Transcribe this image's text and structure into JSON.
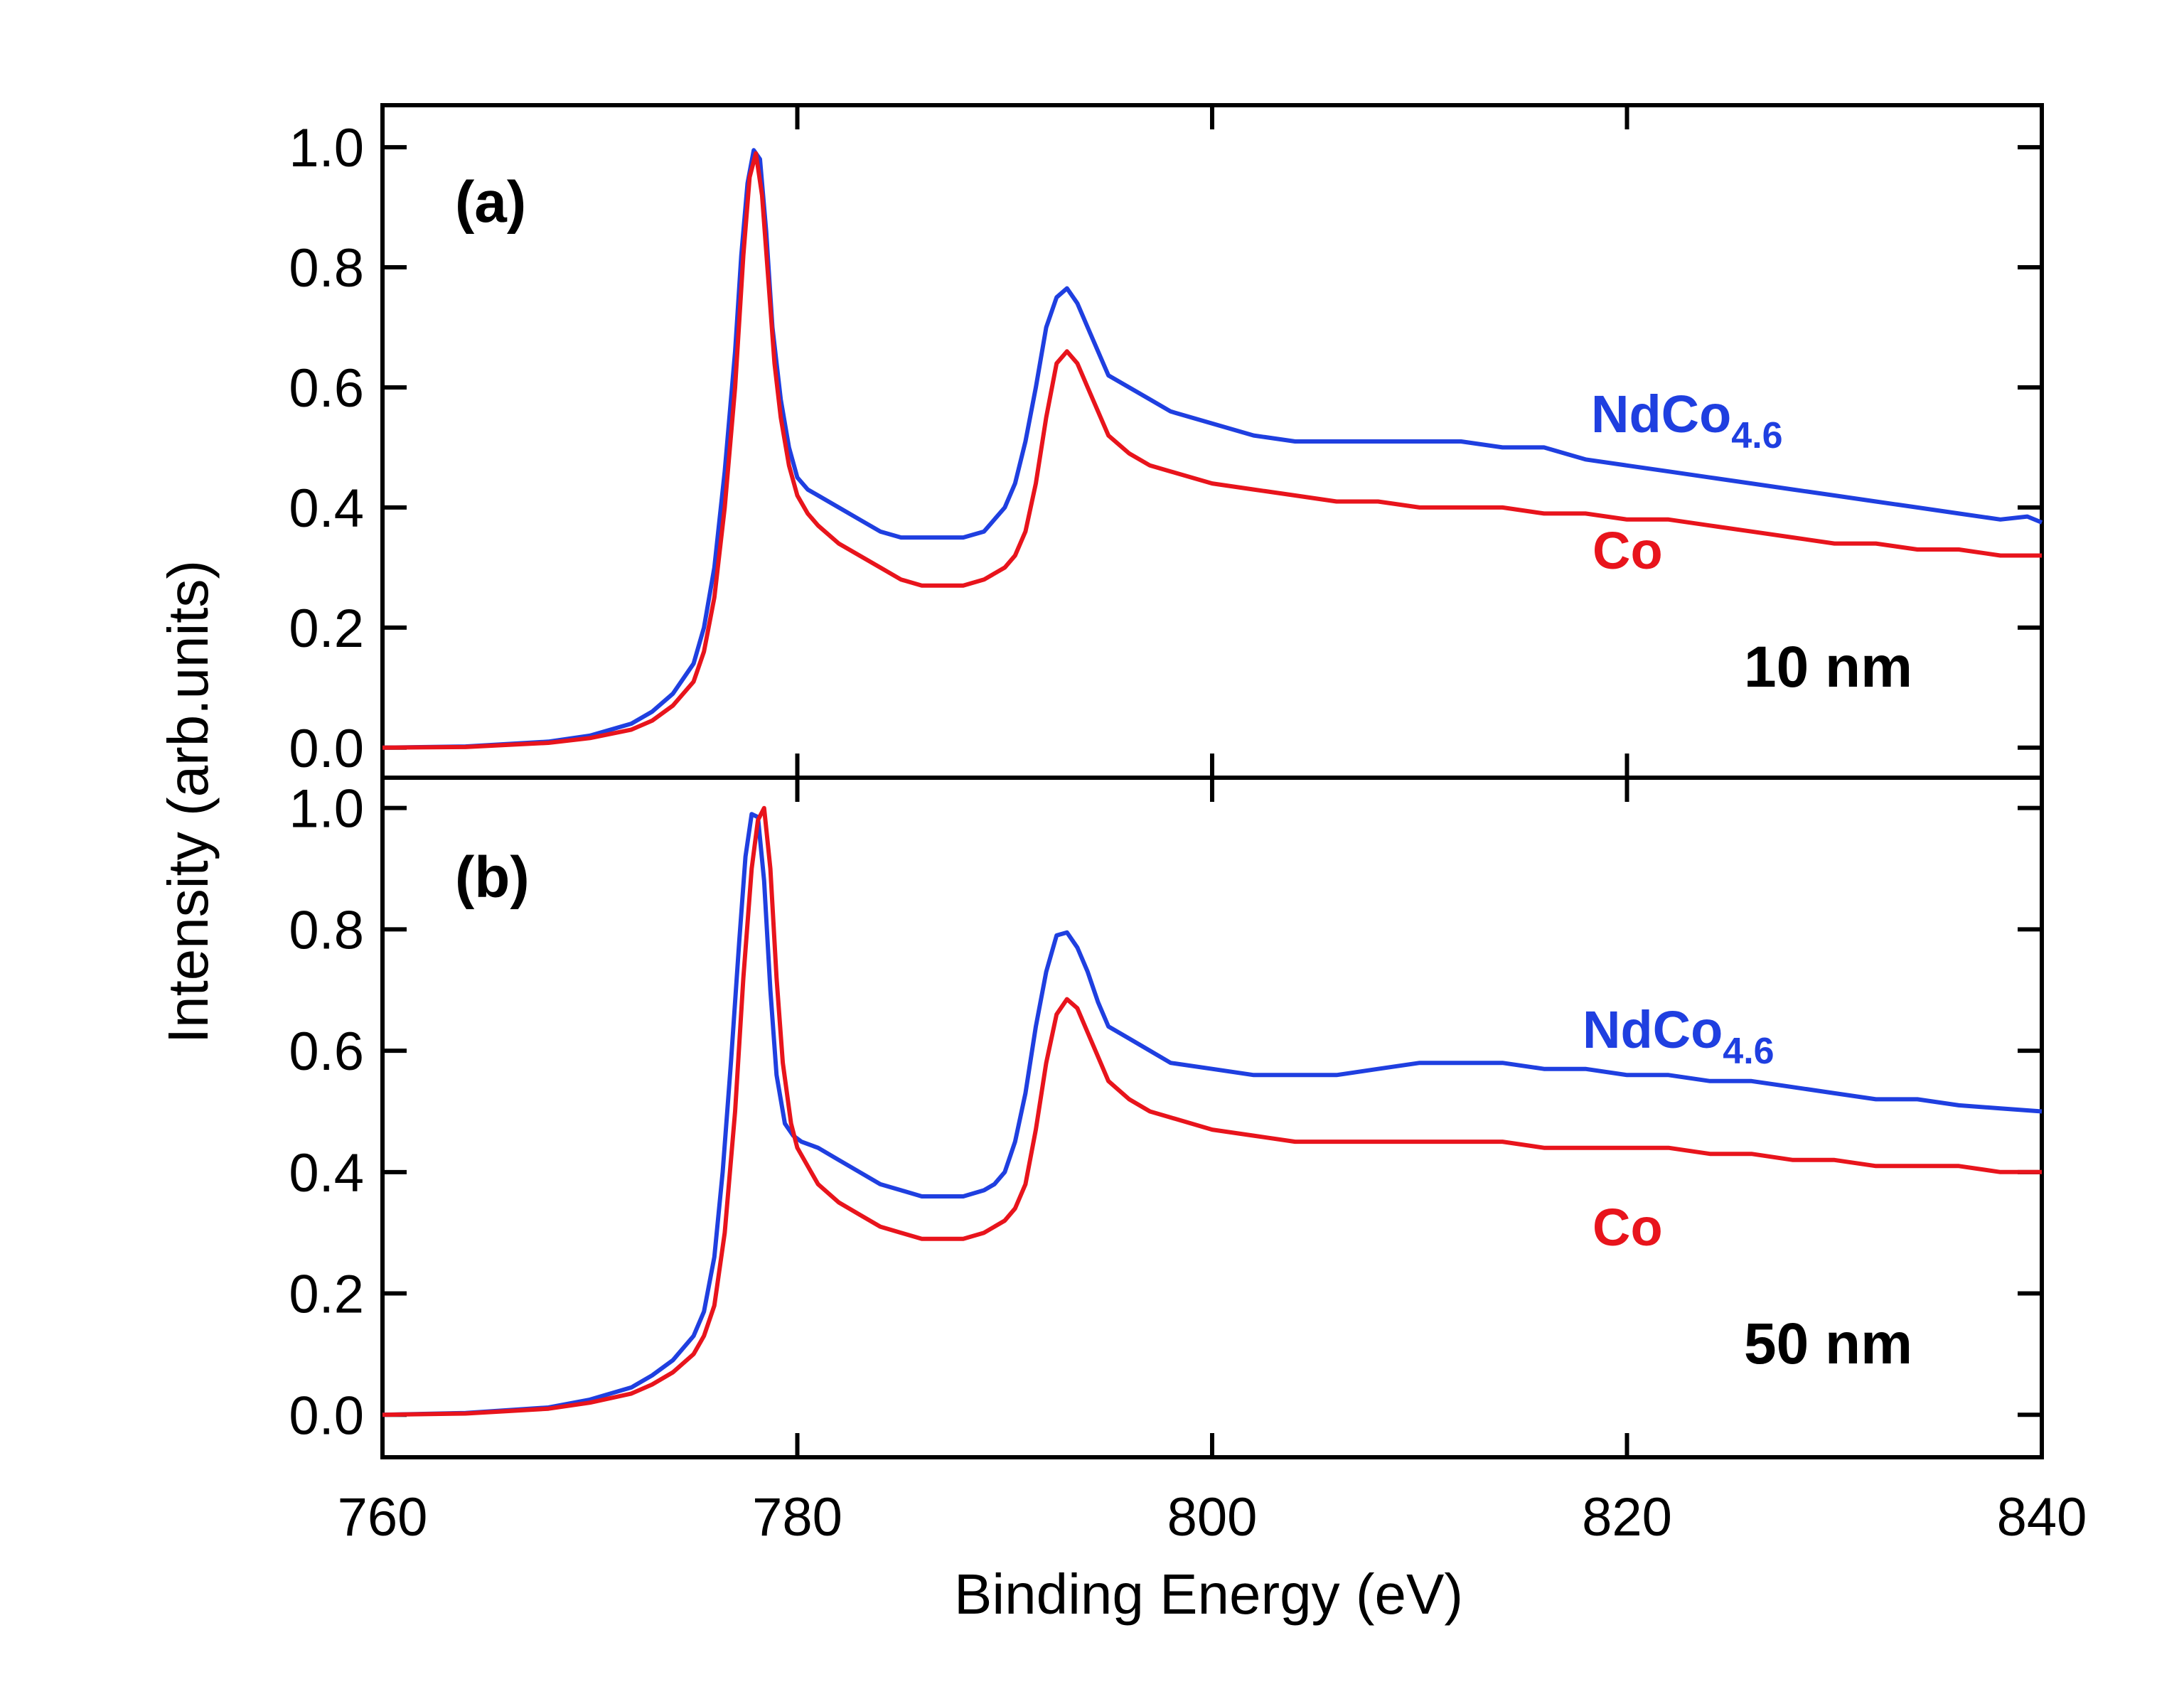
{
  "chart_data": [
    {
      "type": "line",
      "panel_label": "(a)",
      "annotation": "10 nm",
      "xlabel": "Binding Energy (eV)",
      "ylabel": "Intensity (arb.units)",
      "xlim": [
        760,
        840
      ],
      "ylim": [
        -0.05,
        1.07
      ],
      "xticks": [
        760,
        780,
        800,
        820,
        840
      ],
      "yticks": [
        0.0,
        0.2,
        0.4,
        0.6,
        0.8,
        1.0
      ],
      "ytick_labels": [
        "0.0",
        "0.2",
        "0.4",
        "0.6",
        "0.8",
        "1.0"
      ],
      "series": [
        {
          "name": "NdCo",
          "subscript": "4.6",
          "color": "#1f3fe0",
          "x": [
            760,
            764,
            768,
            770,
            772,
            773,
            774,
            775,
            775.5,
            776,
            776.5,
            777,
            777.3,
            777.6,
            777.9,
            778.2,
            778.5,
            778.8,
            779.2,
            779.6,
            780,
            780.5,
            781,
            782,
            783,
            784,
            785,
            786,
            787,
            788,
            789,
            789.5,
            790,
            790.5,
            791,
            791.5,
            792,
            792.5,
            793,
            793.5,
            794,
            794.5,
            795,
            796,
            797,
            798,
            800,
            802,
            804,
            806,
            808,
            810,
            812,
            814,
            816,
            818,
            820,
            822,
            824,
            826,
            828,
            830,
            832,
            834,
            836,
            838,
            839.3,
            840
          ],
          "y": [
            0.0,
            0.002,
            0.01,
            0.02,
            0.04,
            0.06,
            0.09,
            0.14,
            0.2,
            0.3,
            0.46,
            0.66,
            0.82,
            0.94,
            0.995,
            0.98,
            0.86,
            0.7,
            0.58,
            0.5,
            0.45,
            0.43,
            0.42,
            0.4,
            0.38,
            0.36,
            0.35,
            0.35,
            0.35,
            0.35,
            0.36,
            0.38,
            0.4,
            0.44,
            0.51,
            0.6,
            0.7,
            0.75,
            0.765,
            0.74,
            0.7,
            0.66,
            0.62,
            0.6,
            0.58,
            0.56,
            0.54,
            0.52,
            0.51,
            0.51,
            0.51,
            0.51,
            0.51,
            0.5,
            0.5,
            0.48,
            0.47,
            0.46,
            0.45,
            0.44,
            0.43,
            0.42,
            0.41,
            0.4,
            0.39,
            0.38,
            0.385,
            0.375
          ]
        },
        {
          "name": "Co",
          "subscript": "",
          "color": "#e8141c",
          "x": [
            760,
            764,
            768,
            770,
            772,
            773,
            774,
            775,
            775.5,
            776,
            776.5,
            777,
            777.4,
            777.7,
            778,
            778.3,
            778.6,
            778.9,
            779.2,
            779.6,
            780,
            780.5,
            781,
            782,
            783,
            784,
            785,
            786,
            787,
            788,
            789,
            790,
            790.5,
            791,
            791.5,
            792,
            792.5,
            793,
            793.5,
            794,
            794.5,
            795,
            796,
            797,
            798,
            800,
            802,
            804,
            806,
            808,
            810,
            812,
            814,
            816,
            818,
            820,
            822,
            824,
            826,
            828,
            830,
            832,
            834,
            836,
            838,
            840
          ],
          "y": [
            0.0,
            0.001,
            0.008,
            0.016,
            0.03,
            0.045,
            0.07,
            0.11,
            0.16,
            0.25,
            0.4,
            0.6,
            0.82,
            0.95,
            0.99,
            0.92,
            0.78,
            0.64,
            0.55,
            0.47,
            0.42,
            0.39,
            0.37,
            0.34,
            0.32,
            0.3,
            0.28,
            0.27,
            0.27,
            0.27,
            0.28,
            0.3,
            0.32,
            0.36,
            0.44,
            0.55,
            0.64,
            0.66,
            0.64,
            0.6,
            0.56,
            0.52,
            0.49,
            0.47,
            0.46,
            0.44,
            0.43,
            0.42,
            0.41,
            0.41,
            0.4,
            0.4,
            0.4,
            0.39,
            0.39,
            0.38,
            0.38,
            0.37,
            0.36,
            0.35,
            0.34,
            0.34,
            0.33,
            0.33,
            0.32,
            0.32
          ]
        }
      ]
    },
    {
      "type": "line",
      "panel_label": "(b)",
      "annotation": "50 nm",
      "xlabel": "Binding Energy (eV)",
      "ylabel": "Intensity (arb.units)",
      "xlim": [
        760,
        840
      ],
      "ylim": [
        -0.07,
        1.05
      ],
      "xticks": [
        760,
        780,
        800,
        820,
        840
      ],
      "xtick_labels": [
        "760",
        "780",
        "800",
        "820",
        "840"
      ],
      "yticks": [
        0.0,
        0.2,
        0.4,
        0.6,
        0.8,
        1.0
      ],
      "ytick_labels": [
        "0.0",
        "0.2",
        "0.4",
        "0.6",
        "0.8",
        "1.0"
      ],
      "series": [
        {
          "name": "NdCo",
          "subscript": "4.6",
          "color": "#1f3fe0",
          "x": [
            760,
            764,
            768,
            770,
            772,
            773,
            774,
            775,
            775.5,
            776,
            776.4,
            776.8,
            777.2,
            777.5,
            777.8,
            778.1,
            778.4,
            778.7,
            779,
            779.4,
            779.8,
            780.2,
            781,
            782,
            783,
            784,
            785,
            786,
            787,
            788,
            789,
            789.5,
            790,
            790.5,
            791,
            791.5,
            792,
            792.5,
            793,
            793.5,
            794,
            794.5,
            795,
            796,
            797,
            798,
            800,
            802,
            804,
            806,
            808,
            810,
            812,
            814,
            816,
            818,
            820,
            822,
            824,
            826,
            828,
            830,
            832,
            834,
            836,
            838,
            840
          ],
          "y": [
            0.0,
            0.003,
            0.012,
            0.025,
            0.045,
            0.065,
            0.09,
            0.13,
            0.17,
            0.26,
            0.4,
            0.58,
            0.78,
            0.92,
            0.99,
            0.985,
            0.88,
            0.7,
            0.56,
            0.48,
            0.46,
            0.45,
            0.44,
            0.42,
            0.4,
            0.38,
            0.37,
            0.36,
            0.36,
            0.36,
            0.37,
            0.38,
            0.4,
            0.45,
            0.53,
            0.64,
            0.73,
            0.79,
            0.795,
            0.77,
            0.73,
            0.68,
            0.64,
            0.62,
            0.6,
            0.58,
            0.57,
            0.56,
            0.56,
            0.56,
            0.57,
            0.58,
            0.58,
            0.58,
            0.57,
            0.57,
            0.56,
            0.56,
            0.55,
            0.55,
            0.54,
            0.53,
            0.52,
            0.52,
            0.51,
            0.505,
            0.5
          ]
        },
        {
          "name": "Co",
          "subscript": "",
          "color": "#e8141c",
          "x": [
            760,
            764,
            768,
            770,
            772,
            773,
            774,
            775,
            775.5,
            776,
            776.5,
            777,
            777.4,
            777.8,
            778.1,
            778.4,
            778.7,
            779,
            779.3,
            779.7,
            780,
            780.5,
            781,
            782,
            783,
            784,
            785,
            786,
            787,
            788,
            789,
            790,
            790.5,
            791,
            791.5,
            792,
            792.5,
            793,
            793.5,
            794,
            794.5,
            795,
            796,
            797,
            798,
            800,
            802,
            804,
            806,
            808,
            810,
            812,
            814,
            816,
            818,
            820,
            822,
            824,
            826,
            828,
            830,
            832,
            834,
            836,
            838,
            840
          ],
          "y": [
            0.0,
            0.002,
            0.01,
            0.02,
            0.035,
            0.05,
            0.07,
            0.1,
            0.13,
            0.18,
            0.3,
            0.5,
            0.72,
            0.9,
            0.98,
            1.0,
            0.9,
            0.72,
            0.58,
            0.48,
            0.44,
            0.41,
            0.38,
            0.35,
            0.33,
            0.31,
            0.3,
            0.29,
            0.29,
            0.29,
            0.3,
            0.32,
            0.34,
            0.38,
            0.47,
            0.58,
            0.66,
            0.685,
            0.67,
            0.63,
            0.59,
            0.55,
            0.52,
            0.5,
            0.49,
            0.47,
            0.46,
            0.45,
            0.45,
            0.45,
            0.45,
            0.45,
            0.45,
            0.44,
            0.44,
            0.44,
            0.44,
            0.43,
            0.43,
            0.42,
            0.42,
            0.41,
            0.41,
            0.41,
            0.4,
            0.4
          ]
        }
      ]
    }
  ]
}
